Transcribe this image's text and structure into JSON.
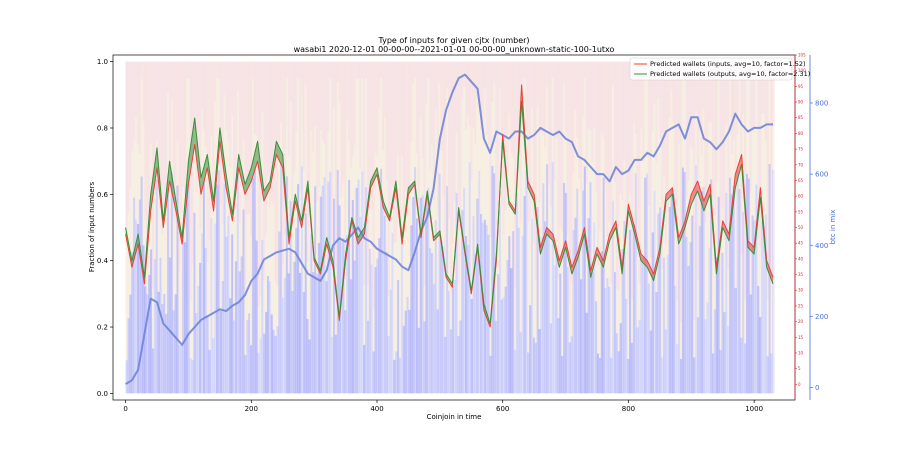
{
  "chart_data": {
    "type": "line",
    "title": "Type of inputs for given cjtx (number)",
    "subtitle": "wasabi1 2020-12-01 00-00-00--2021-01-01 00-00-00_unknown-static-100-1utxo",
    "xlabel": "Coinjoin in time",
    "ylabel": "Fraction of input numbers",
    "y2label": "btc in mix",
    "xlim": [
      -20,
      1065
    ],
    "ylim": [
      -0.02,
      1.02
    ],
    "y2lim": [
      -35,
      935
    ],
    "y3lim": [
      -5,
      105
    ],
    "xticks": [
      "0",
      "200",
      "400",
      "600",
      "800",
      "1000"
    ],
    "yticks": [
      "0.0",
      "0.2",
      "0.4",
      "0.6",
      "0.8",
      "1.0"
    ],
    "y2ticks": [
      "0",
      "200",
      "400",
      "600",
      "800"
    ],
    "y3ticks": [
      "0",
      "5",
      "10",
      "15",
      "20",
      "25",
      "30",
      "35",
      "40",
      "45",
      "50",
      "55",
      "60",
      "65",
      "70",
      "75",
      "80",
      "85",
      "90",
      "95",
      "100",
      "105"
    ],
    "colors": {
      "inputs": "#e8413a",
      "outputs": "#3a8f3a",
      "btc": "#6f84d8",
      "bg_blue": "#dde2fb",
      "bg_blue_dark": "#6e6ef0",
      "bg_yellow": "#fbf0d8",
      "bg_pink": "#fbe0dc"
    },
    "series": [
      {
        "name": "Predicted wallets (inputs, avg=10, factor=1.52)",
        "x": [
          0,
          10,
          20,
          30,
          40,
          50,
          60,
          70,
          80,
          90,
          100,
          110,
          120,
          130,
          140,
          150,
          160,
          170,
          180,
          190,
          200,
          210,
          220,
          230,
          240,
          250,
          260,
          270,
          280,
          290,
          300,
          310,
          320,
          330,
          340,
          350,
          360,
          370,
          380,
          390,
          400,
          410,
          420,
          430,
          440,
          450,
          460,
          470,
          480,
          490,
          500,
          510,
          520,
          530,
          540,
          550,
          560,
          570,
          580,
          590,
          600,
          610,
          620,
          630,
          640,
          650,
          660,
          670,
          680,
          690,
          700,
          710,
          720,
          730,
          740,
          750,
          760,
          770,
          780,
          790,
          800,
          810,
          820,
          830,
          840,
          850,
          860,
          870,
          880,
          890,
          900,
          910,
          920,
          930,
          940,
          950,
          960,
          970,
          980,
          990,
          1000,
          1010,
          1020,
          1030
        ],
        "values": [
          0.48,
          0.38,
          0.45,
          0.33,
          0.55,
          0.68,
          0.5,
          0.64,
          0.55,
          0.45,
          0.63,
          0.75,
          0.6,
          0.68,
          0.55,
          0.76,
          0.62,
          0.52,
          0.68,
          0.6,
          0.64,
          0.7,
          0.58,
          0.62,
          0.72,
          0.68,
          0.45,
          0.58,
          0.5,
          0.62,
          0.4,
          0.36,
          0.45,
          0.38,
          0.22,
          0.4,
          0.52,
          0.45,
          0.48,
          0.62,
          0.66,
          0.56,
          0.52,
          0.62,
          0.45,
          0.6,
          0.63,
          0.47,
          0.6,
          0.46,
          0.48,
          0.35,
          0.32,
          0.55,
          0.42,
          0.3,
          0.44,
          0.25,
          0.2,
          0.4,
          0.78,
          0.58,
          0.55,
          0.93,
          0.64,
          0.6,
          0.44,
          0.5,
          0.48,
          0.4,
          0.46,
          0.38,
          0.43,
          0.5,
          0.37,
          0.44,
          0.4,
          0.48,
          0.52,
          0.38,
          0.57,
          0.5,
          0.42,
          0.4,
          0.36,
          0.44,
          0.6,
          0.62,
          0.47,
          0.52,
          0.6,
          0.64,
          0.58,
          0.63,
          0.38,
          0.52,
          0.48,
          0.66,
          0.72,
          0.46,
          0.44,
          0.62,
          0.4,
          0.35
        ]
      },
      {
        "name": "Predicted wallets (outputs, avg=10, factor=2.31)",
        "x": [
          0,
          10,
          20,
          30,
          40,
          50,
          60,
          70,
          80,
          90,
          100,
          110,
          120,
          130,
          140,
          150,
          160,
          170,
          180,
          190,
          200,
          210,
          220,
          230,
          240,
          250,
          260,
          270,
          280,
          290,
          300,
          310,
          320,
          330,
          340,
          350,
          360,
          370,
          380,
          390,
          400,
          410,
          420,
          430,
          440,
          450,
          460,
          470,
          480,
          490,
          500,
          510,
          520,
          530,
          540,
          550,
          560,
          570,
          580,
          590,
          600,
          610,
          620,
          630,
          640,
          650,
          660,
          670,
          680,
          690,
          700,
          710,
          720,
          730,
          740,
          750,
          760,
          770,
          780,
          790,
          800,
          810,
          820,
          830,
          840,
          850,
          860,
          870,
          880,
          890,
          900,
          910,
          920,
          930,
          940,
          950,
          960,
          970,
          980,
          990,
          1000,
          1010,
          1020,
          1030
        ],
        "values": [
          0.5,
          0.4,
          0.48,
          0.35,
          0.6,
          0.74,
          0.52,
          0.7,
          0.58,
          0.47,
          0.7,
          0.83,
          0.65,
          0.72,
          0.58,
          0.8,
          0.66,
          0.54,
          0.72,
          0.63,
          0.68,
          0.76,
          0.61,
          0.64,
          0.76,
          0.72,
          0.47,
          0.6,
          0.52,
          0.64,
          0.41,
          0.37,
          0.47,
          0.4,
          0.23,
          0.42,
          0.53,
          0.47,
          0.5,
          0.64,
          0.68,
          0.58,
          0.53,
          0.64,
          0.47,
          0.62,
          0.64,
          0.48,
          0.61,
          0.47,
          0.49,
          0.36,
          0.33,
          0.56,
          0.43,
          0.31,
          0.45,
          0.27,
          0.21,
          0.42,
          0.76,
          0.57,
          0.54,
          0.88,
          0.62,
          0.58,
          0.42,
          0.48,
          0.46,
          0.38,
          0.44,
          0.36,
          0.41,
          0.48,
          0.35,
          0.42,
          0.38,
          0.46,
          0.5,
          0.36,
          0.55,
          0.48,
          0.4,
          0.38,
          0.34,
          0.42,
          0.58,
          0.6,
          0.45,
          0.5,
          0.57,
          0.61,
          0.55,
          0.6,
          0.36,
          0.5,
          0.46,
          0.62,
          0.69,
          0.44,
          0.42,
          0.59,
          0.38,
          0.33
        ]
      },
      {
        "name": "btc in mix",
        "axis": "right",
        "x": [
          0,
          10,
          20,
          30,
          40,
          50,
          60,
          70,
          80,
          90,
          100,
          110,
          120,
          130,
          140,
          150,
          160,
          170,
          180,
          190,
          200,
          210,
          220,
          230,
          240,
          250,
          260,
          270,
          280,
          290,
          300,
          310,
          320,
          330,
          340,
          350,
          360,
          370,
          380,
          390,
          400,
          410,
          420,
          430,
          440,
          450,
          460,
          470,
          480,
          490,
          500,
          510,
          520,
          530,
          540,
          550,
          560,
          570,
          580,
          590,
          600,
          610,
          620,
          630,
          640,
          650,
          660,
          670,
          680,
          690,
          700,
          710,
          720,
          730,
          740,
          750,
          760,
          770,
          780,
          790,
          800,
          810,
          820,
          830,
          840,
          850,
          860,
          870,
          880,
          890,
          900,
          910,
          920,
          930,
          940,
          950,
          960,
          970,
          980,
          990,
          1000,
          1010,
          1020,
          1030
        ],
        "values": [
          10,
          20,
          50,
          150,
          250,
          240,
          180,
          160,
          140,
          120,
          150,
          170,
          190,
          200,
          210,
          220,
          215,
          230,
          240,
          260,
          300,
          320,
          360,
          370,
          380,
          385,
          390,
          380,
          350,
          320,
          310,
          300,
          330,
          400,
          420,
          410,
          430,
          450,
          420,
          410,
          390,
          380,
          370,
          360,
          340,
          330,
          380,
          440,
          480,
          560,
          700,
          780,
          830,
          870,
          880,
          860,
          840,
          700,
          660,
          720,
          710,
          700,
          720,
          720,
          700,
          710,
          730,
          720,
          710,
          720,
          700,
          690,
          650,
          640,
          620,
          600,
          600,
          580,
          620,
          600,
          610,
          640,
          640,
          660,
          650,
          680,
          720,
          730,
          740,
          700,
          760,
          760,
          700,
          690,
          670,
          690,
          720,
          770,
          740,
          720,
          730,
          730,
          740,
          740
        ]
      }
    ],
    "legend_position": "top-right"
  }
}
